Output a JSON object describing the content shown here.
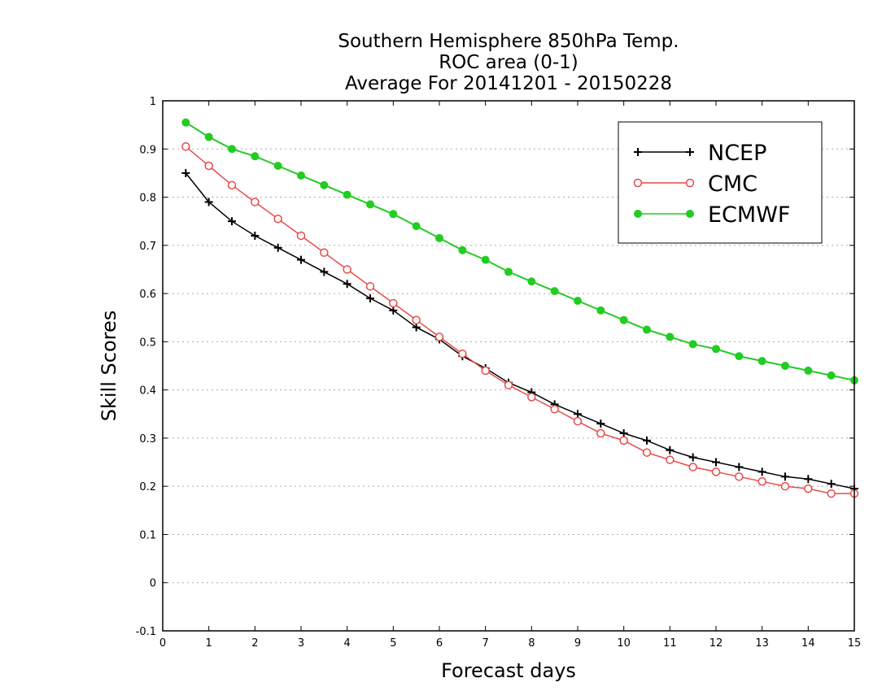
{
  "chart_data": {
    "type": "line",
    "title": [
      "Southern Hemisphere 850hPa Temp.",
      "ROC area (0-1)",
      "Average For 20141201 - 20150228"
    ],
    "xlabel": "Forecast days",
    "ylabel": "Skill Scores",
    "xlim": [
      0,
      15
    ],
    "ylim": [
      -0.1,
      1
    ],
    "x_ticks": [
      0,
      1,
      2,
      3,
      4,
      5,
      6,
      7,
      8,
      9,
      10,
      11,
      12,
      13,
      14,
      15
    ],
    "x_tick_labels": [
      "0",
      "1",
      "2",
      "3",
      "4",
      "5",
      "6",
      "7",
      "8",
      "9",
      "10",
      "11",
      "12",
      "13",
      "14",
      "15"
    ],
    "y_ticks": [
      -0.1,
      0,
      0.1,
      0.2,
      0.3,
      0.4,
      0.5,
      0.6,
      0.7,
      0.8,
      0.9,
      1
    ],
    "y_tick_labels": [
      "-0.1",
      "0",
      "0.1",
      "0.2",
      "0.3",
      "0.4",
      "0.5",
      "0.6",
      "0.7",
      "0.8",
      "0.9",
      "1"
    ],
    "grid": "horizontal dotted",
    "legend_position": "top-right",
    "x": [
      0.5,
      1,
      1.5,
      2,
      2.5,
      3,
      3.5,
      4,
      4.5,
      5,
      5.5,
      6,
      6.5,
      7,
      7.5,
      8,
      8.5,
      9,
      9.5,
      10,
      10.5,
      11,
      11.5,
      12,
      12.5,
      13,
      13.5,
      14,
      14.5,
      15
    ],
    "series": [
      {
        "name": "NCEP",
        "color": "#000000",
        "marker": "plus",
        "values": [
          0.85,
          0.79,
          0.75,
          0.72,
          0.695,
          0.67,
          0.645,
          0.62,
          0.59,
          0.565,
          0.53,
          0.505,
          0.47,
          0.445,
          0.415,
          0.395,
          0.37,
          0.35,
          0.33,
          0.31,
          0.295,
          0.275,
          0.26,
          0.25,
          0.24,
          0.23,
          0.22,
          0.215,
          0.205,
          0.195
        ]
      },
      {
        "name": "CMC",
        "color": "#e84a4a",
        "marker": "open-circle",
        "values": [
          0.905,
          0.865,
          0.825,
          0.79,
          0.755,
          0.72,
          0.685,
          0.65,
          0.615,
          0.58,
          0.545,
          0.51,
          0.475,
          0.44,
          0.41,
          0.385,
          0.36,
          0.335,
          0.31,
          0.295,
          0.27,
          0.255,
          0.24,
          0.23,
          0.22,
          0.21,
          0.2,
          0.195,
          0.185,
          0.185
        ]
      },
      {
        "name": "ECMWF",
        "color": "#22cc22",
        "marker": "filled-circle",
        "values": [
          0.955,
          0.925,
          0.9,
          0.885,
          0.865,
          0.845,
          0.825,
          0.805,
          0.785,
          0.765,
          0.74,
          0.715,
          0.69,
          0.67,
          0.645,
          0.625,
          0.605,
          0.585,
          0.565,
          0.545,
          0.525,
          0.51,
          0.495,
          0.485,
          0.47,
          0.46,
          0.45,
          0.44,
          0.43,
          0.42
        ]
      }
    ]
  }
}
